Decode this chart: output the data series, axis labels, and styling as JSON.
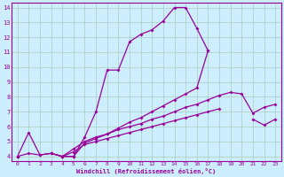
{
  "xlabel": "Windchill (Refroidissement éolien,°C)",
  "background_color": "#cceeff",
  "line_color": "#990099",
  "grid_color": "#aaccbb",
  "xlim": [
    -0.5,
    23.5
  ],
  "ylim": [
    3.7,
    14.3
  ],
  "xticks": [
    0,
    1,
    2,
    3,
    4,
    5,
    6,
    7,
    8,
    9,
    10,
    11,
    12,
    13,
    14,
    15,
    16,
    17,
    18,
    19,
    20,
    21,
    22,
    23
  ],
  "yticks": [
    4,
    5,
    6,
    7,
    8,
    9,
    10,
    11,
    12,
    13,
    14
  ],
  "series": [
    {
      "x": [
        0,
        1,
        2,
        3,
        4,
        5,
        6,
        7,
        8,
        9,
        10,
        11,
        12,
        13,
        14,
        15,
        16,
        17,
        18,
        19,
        20,
        21,
        22,
        23
      ],
      "y": [
        4.0,
        5.6,
        4.1,
        4.2,
        4.0,
        4.0,
        5.3,
        7.0,
        9.8,
        9.8,
        11.7,
        12.2,
        12.5,
        13.1,
        14.0,
        14.0,
        12.6,
        11.1,
        null,
        null,
        null,
        null,
        null,
        null
      ]
    },
    {
      "x": [
        0,
        1,
        2,
        3,
        4,
        5,
        6,
        7,
        8,
        9,
        10,
        11,
        12,
        13,
        14,
        15,
        16,
        17,
        18,
        19,
        20,
        21,
        22,
        23
      ],
      "y": [
        4.0,
        4.2,
        4.1,
        4.2,
        4.0,
        4.0,
        4.9,
        5.2,
        5.5,
        5.9,
        6.3,
        6.6,
        7.0,
        7.4,
        7.8,
        8.2,
        8.6,
        11.1,
        null,
        null,
        null,
        null,
        null,
        null
      ]
    },
    {
      "x": [
        0,
        1,
        2,
        3,
        4,
        5,
        6,
        7,
        8,
        9,
        10,
        11,
        12,
        13,
        14,
        15,
        16,
        17,
        18,
        19,
        20,
        21,
        22,
        23
      ],
      "y": [
        4.0,
        null,
        null,
        4.2,
        4.0,
        4.5,
        5.0,
        5.3,
        5.5,
        5.8,
        6.0,
        6.2,
        6.5,
        6.7,
        7.0,
        7.3,
        7.5,
        7.8,
        8.1,
        8.3,
        8.2,
        6.9,
        7.3,
        7.5
      ]
    },
    {
      "x": [
        0,
        1,
        2,
        3,
        4,
        5,
        6,
        7,
        8,
        9,
        10,
        11,
        12,
        13,
        14,
        15,
        16,
        17,
        18,
        19,
        20,
        21,
        22,
        23
      ],
      "y": [
        4.0,
        null,
        null,
        null,
        4.0,
        4.3,
        4.8,
        5.0,
        5.2,
        5.4,
        5.6,
        5.8,
        6.0,
        6.2,
        6.4,
        6.6,
        6.8,
        7.0,
        7.2,
        null,
        null,
        6.5,
        6.1,
        6.5
      ]
    }
  ]
}
